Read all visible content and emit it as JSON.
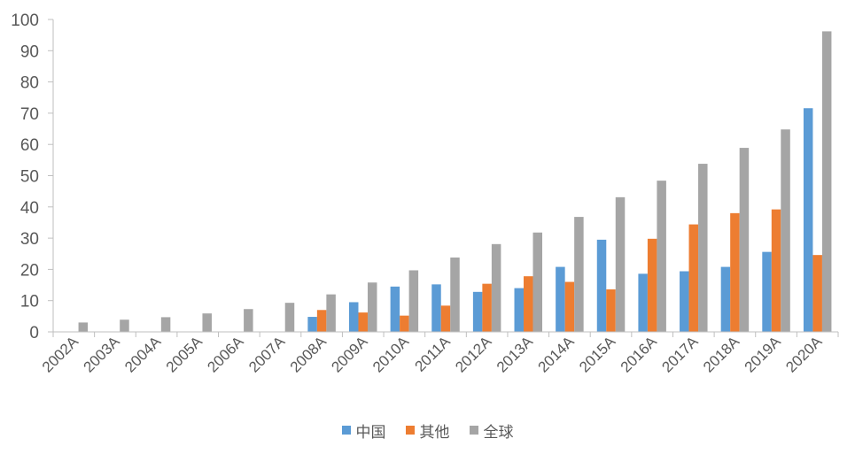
{
  "chart_data": {
    "type": "bar",
    "categories": [
      "2002A",
      "2003A",
      "2004A",
      "2005A",
      "2006A",
      "2007A",
      "2008A",
      "2009A",
      "2010A",
      "2011A",
      "2012A",
      "2013A",
      "2014A",
      "2015A",
      "2016A",
      "2017A",
      "2018A",
      "2019A",
      "2020A"
    ],
    "series": [
      {
        "name": "中国",
        "color": "#5B9BD5",
        "values": [
          0,
          0,
          0,
          0,
          0,
          0,
          4.8,
          9.5,
          14.5,
          15.2,
          12.8,
          14,
          20.8,
          29.5,
          18.6,
          19.4,
          20.8,
          25.6,
          71.6
        ]
      },
      {
        "name": "其他",
        "color": "#ED7D31",
        "values": [
          0,
          0,
          0,
          0,
          0,
          0,
          7,
          6.2,
          5.2,
          8.4,
          15.4,
          17.8,
          16,
          13.6,
          29.8,
          34.4,
          38,
          39.2,
          24.6
        ]
      },
      {
        "name": "全球",
        "color": "#A5A5A5",
        "values": [
          3,
          3.9,
          4.7,
          5.9,
          7.3,
          9.3,
          12,
          15.8,
          19.7,
          23.8,
          28.1,
          31.8,
          36.8,
          43.1,
          48.4,
          53.8,
          58.9,
          64.8,
          96.2
        ]
      }
    ],
    "ylim": [
      0,
      100
    ],
    "yticks": [
      "0",
      "10",
      "20",
      "30",
      "40",
      "50",
      "60",
      "70",
      "80",
      "90",
      "100"
    ],
    "legend_position": "bottom",
    "grid": false
  }
}
